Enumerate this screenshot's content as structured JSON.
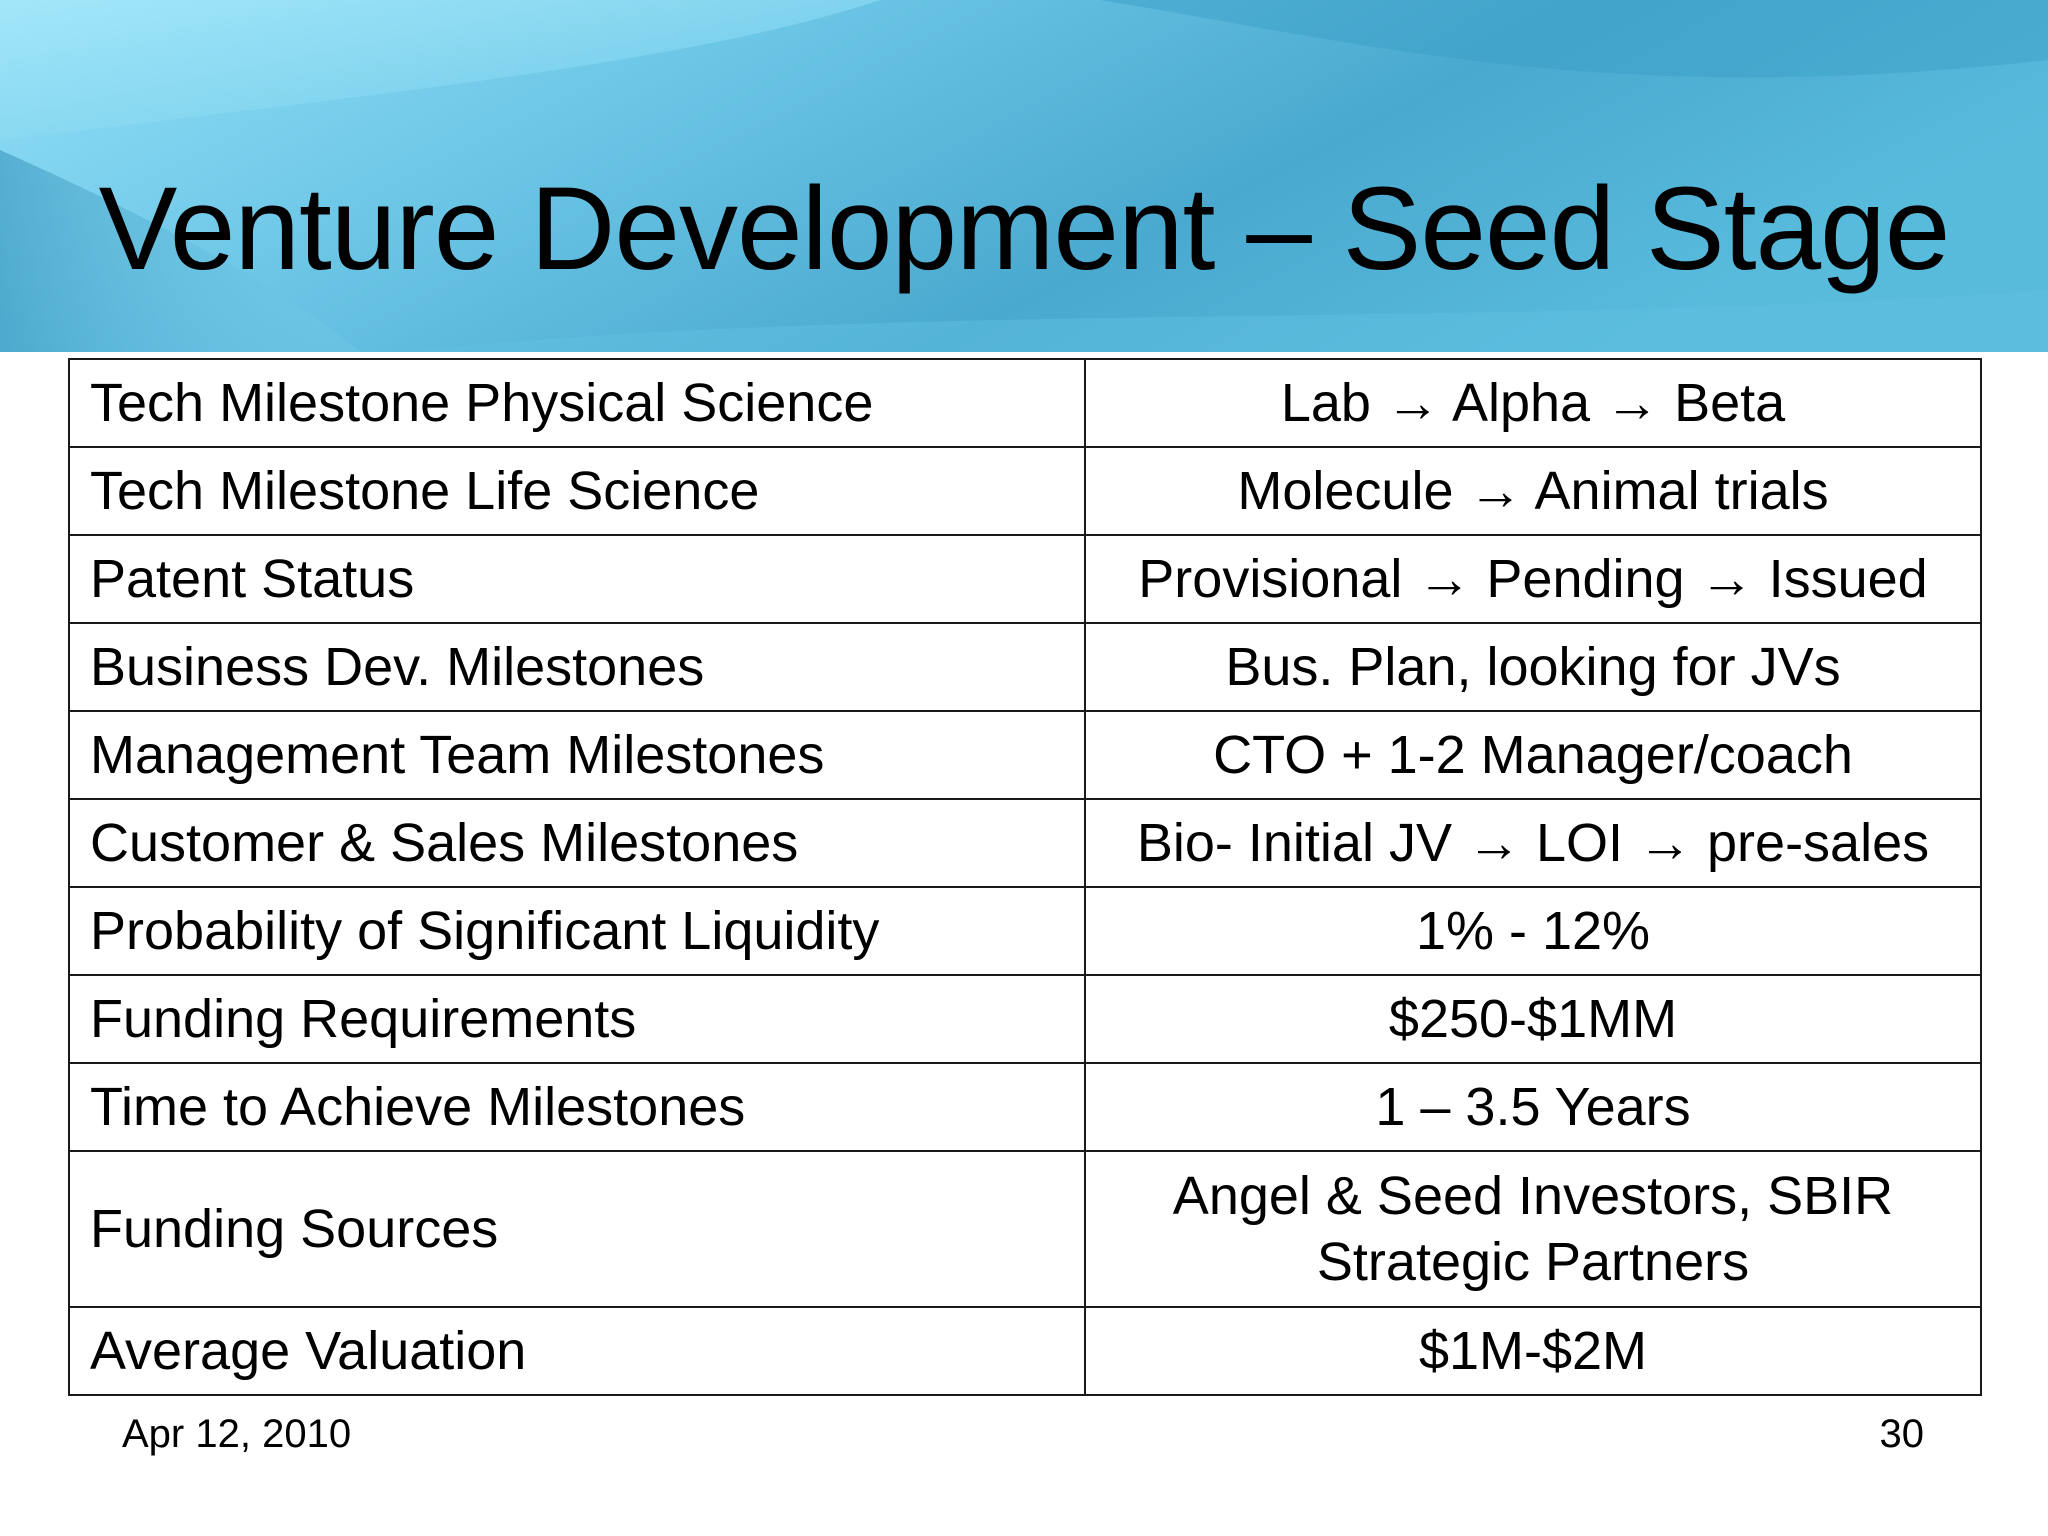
{
  "slide": {
    "title": "Venture Development – Seed Stage",
    "footer_date": "Apr 12, 2010",
    "page_number": "30"
  },
  "colors": {
    "banner_light": "#8fdcf5",
    "banner_mid": "#5ab8d8",
    "banner_dark": "#3d9fc4",
    "table_border": "#1a1a1a",
    "text": "#000000"
  },
  "table": {
    "rows": [
      {
        "label": "Tech Milestone Physical Science",
        "value": "Lab → Alpha → Beta"
      },
      {
        "label": "Tech Milestone Life Science",
        "value": "Molecule → Animal trials"
      },
      {
        "label": "Patent Status",
        "value": "Provisional → Pending → Issued"
      },
      {
        "label": "Business Dev. Milestones",
        "value": "Bus. Plan, looking for JVs"
      },
      {
        "label": "Management Team Milestones",
        "value": "CTO +  1-2 Manager/coach"
      },
      {
        "label": "Customer & Sales Milestones",
        "value": "Bio- Initial JV → LOI → pre-sales"
      },
      {
        "label": "Probability of Significant Liquidity",
        "value": "1% - 12%"
      },
      {
        "label": "Funding Requirements",
        "value": "$250-$1MM"
      },
      {
        "label": "Time to Achieve Milestones",
        "value": "1 – 3.5 Years"
      },
      {
        "label": "Funding Sources",
        "value_line1": "Angel & Seed Investors, SBIR",
        "value_line2": "Strategic Partners"
      },
      {
        "label": "Average Valuation",
        "value": "$1M-$2M"
      }
    ]
  }
}
